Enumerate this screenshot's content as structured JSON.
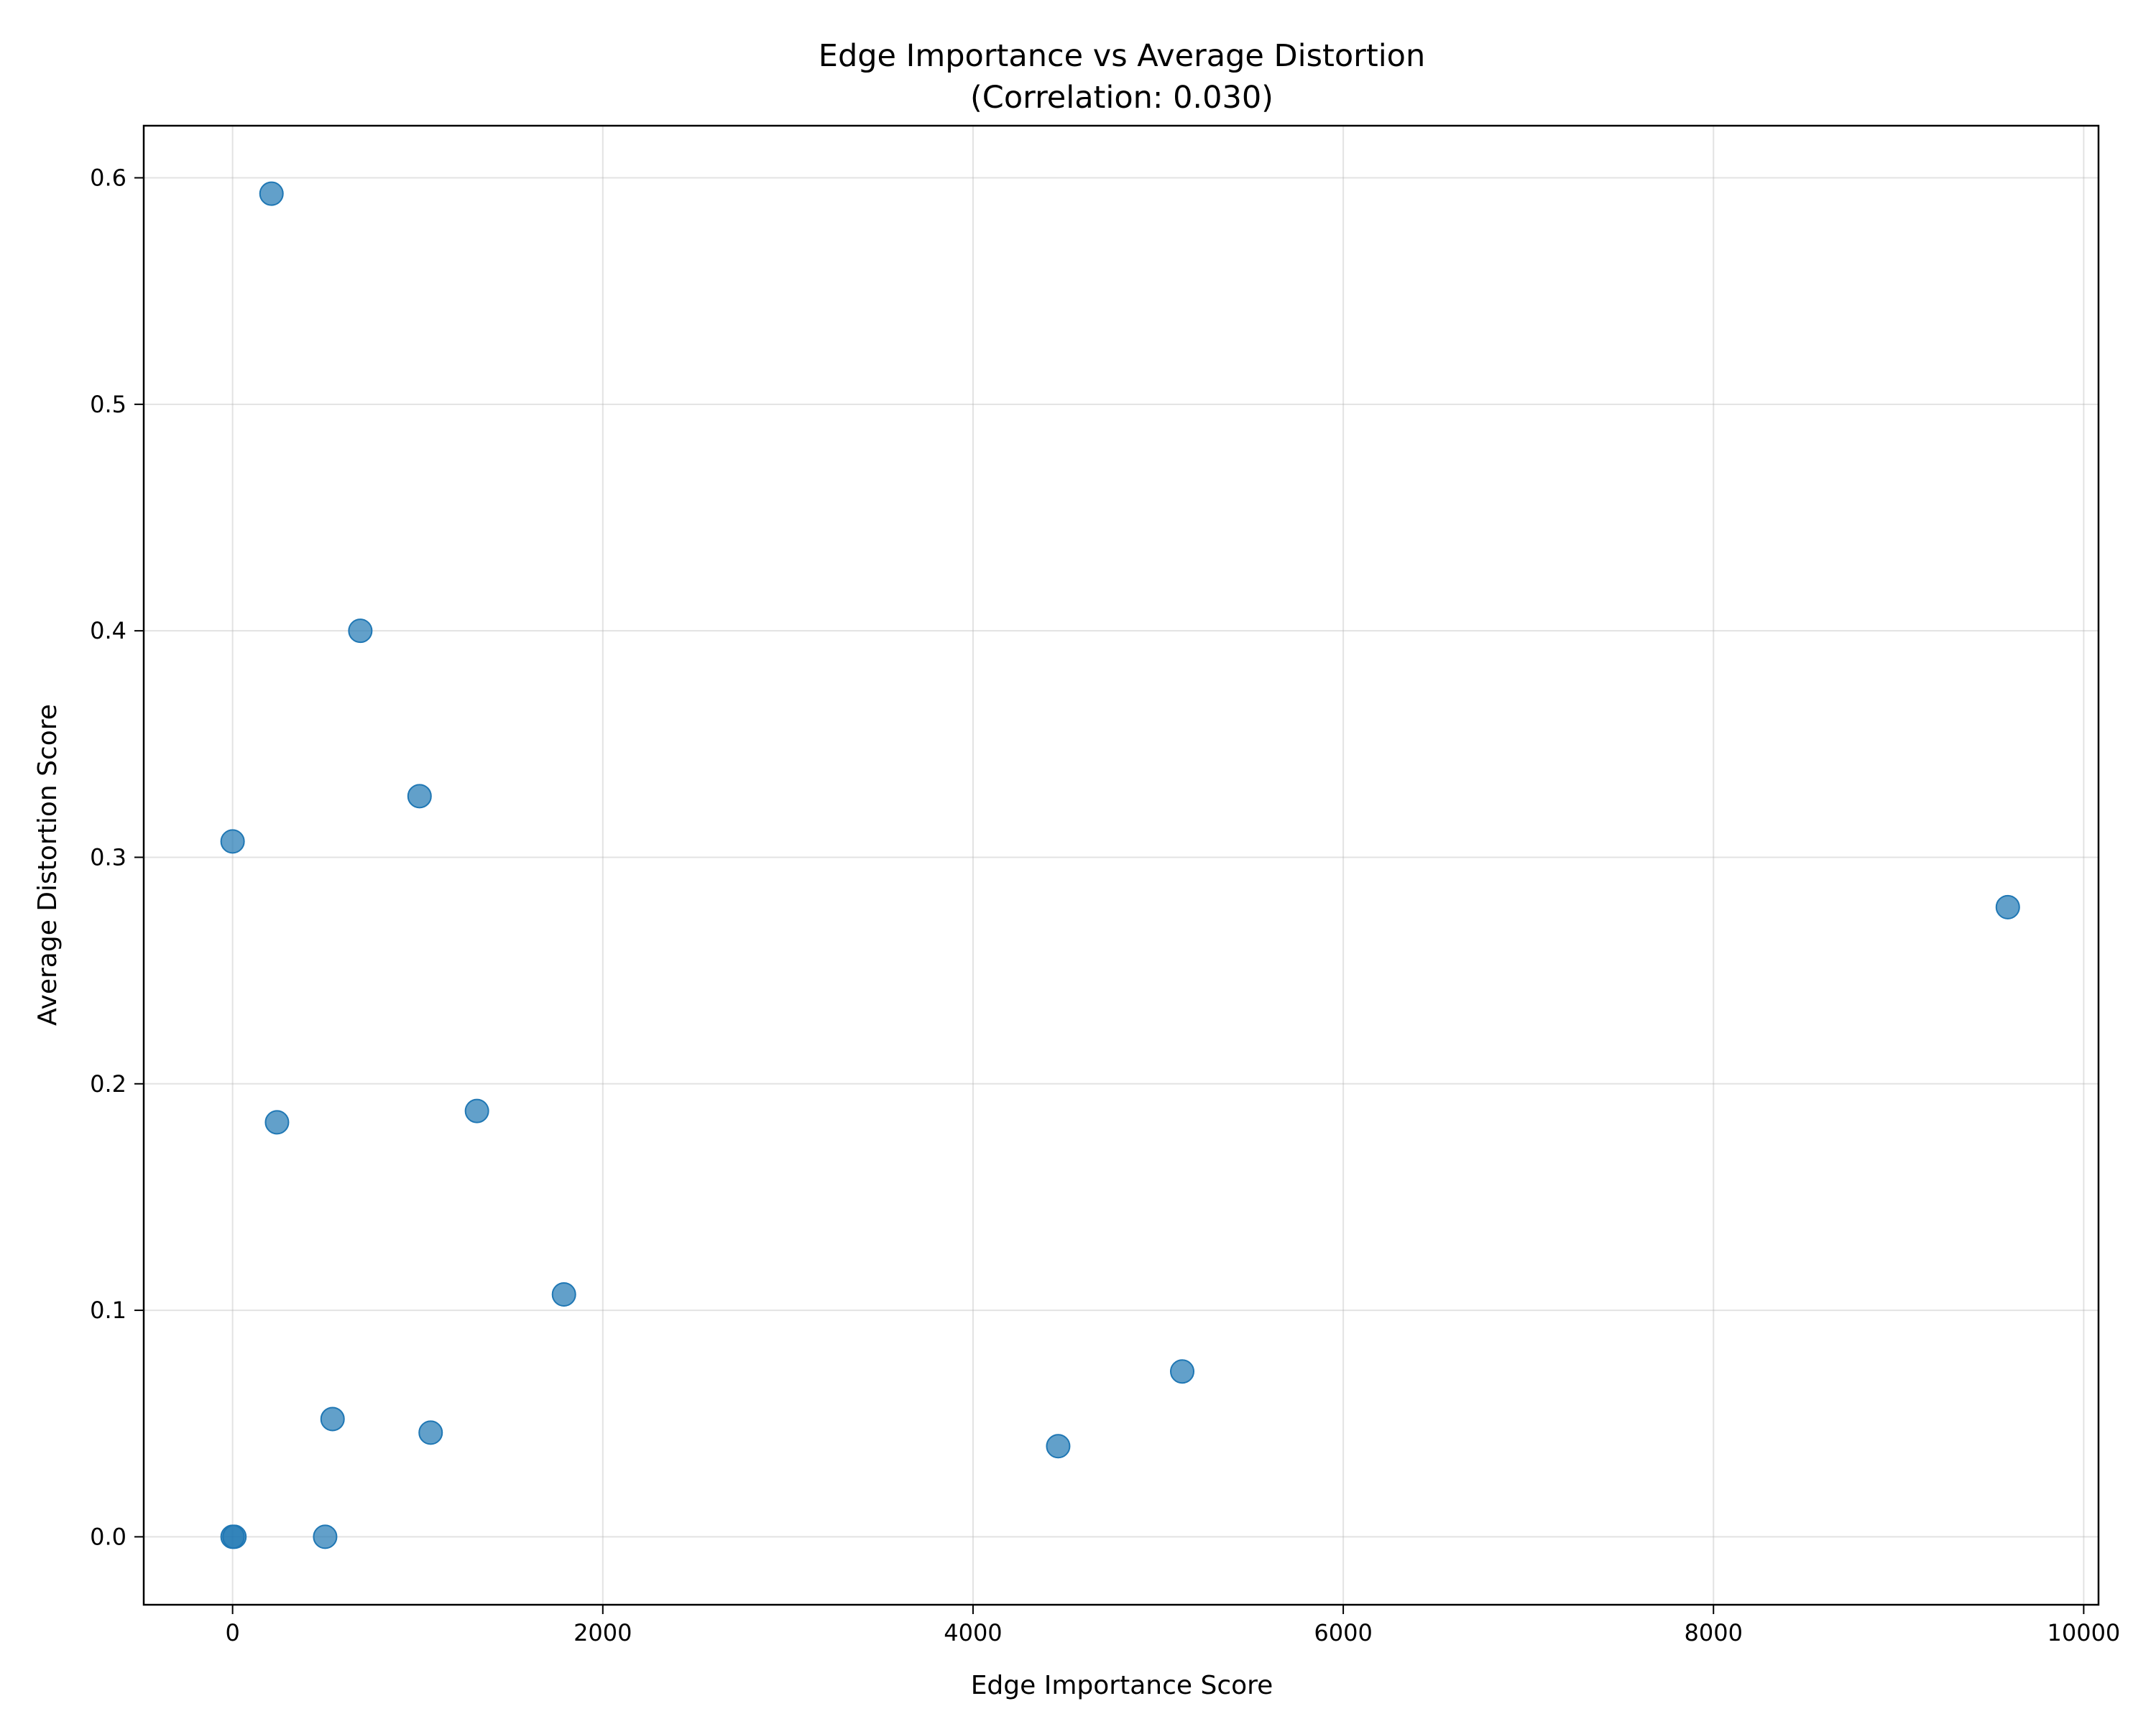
{
  "chart_data": {
    "type": "scatter",
    "title": "Edge Importance vs Average Distortion",
    "subtitle": "(Correlation: 0.030)",
    "xlabel": "Edge Importance Score",
    "ylabel": "Average Distortion Score",
    "xlim": [
      -480,
      10080
    ],
    "ylim": [
      -0.03,
      0.623
    ],
    "xticks": [
      0,
      2000,
      4000,
      6000,
      8000,
      10000
    ],
    "xtick_labels": [
      "0",
      "2000",
      "4000",
      "6000",
      "8000",
      "10000"
    ],
    "yticks": [
      0.0,
      0.1,
      0.2,
      0.3,
      0.4,
      0.5,
      0.6
    ],
    "ytick_labels": [
      "0.0",
      "0.1",
      "0.2",
      "0.3",
      "0.4",
      "0.5",
      "0.6"
    ],
    "grid": true,
    "legend": "none",
    "color": "#1f77b4",
    "points": [
      {
        "x": 210,
        "y": 0.593
      },
      {
        "x": 690,
        "y": 0.4
      },
      {
        "x": 1010,
        "y": 0.327
      },
      {
        "x": 0,
        "y": 0.307
      },
      {
        "x": 9590,
        "y": 0.278
      },
      {
        "x": 240,
        "y": 0.183
      },
      {
        "x": 1320,
        "y": 0.188
      },
      {
        "x": 1790,
        "y": 0.107
      },
      {
        "x": 5130,
        "y": 0.073
      },
      {
        "x": 540,
        "y": 0.052
      },
      {
        "x": 1070,
        "y": 0.046
      },
      {
        "x": 4460,
        "y": 0.04
      },
      {
        "x": 0,
        "y": 0.0
      },
      {
        "x": 10,
        "y": 0.0
      },
      {
        "x": 500,
        "y": 0.0
      }
    ]
  }
}
